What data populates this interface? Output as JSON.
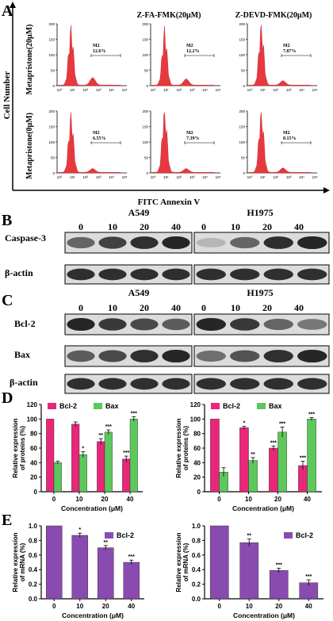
{
  "panel_letters": [
    "A",
    "B",
    "C",
    "D",
    "E"
  ],
  "panelA": {
    "y_title": "Cell Number",
    "x_title": "FITC Annexin V",
    "column_labels": [
      "",
      "Z-FA-FMK(20μM)",
      "Z-DEVD-FMK(20μM)"
    ],
    "row_labels": [
      "Metapristone(20μM)",
      "Metapristone(0μM)"
    ],
    "gate_label": "M2",
    "histograms": [
      {
        "row": 0,
        "col": 0,
        "gate_percent": "12.6%",
        "y_max": 200,
        "y_ticks": [
          "0",
          "50",
          "100",
          "150",
          "200"
        ]
      },
      {
        "row": 0,
        "col": 1,
        "gate_percent": "12.2%",
        "y_max": 200,
        "y_ticks": [
          "0",
          "50",
          "100",
          "150",
          "200"
        ]
      },
      {
        "row": 0,
        "col": 2,
        "gate_percent": "7.87%",
        "y_max": 200,
        "y_ticks": [
          "0",
          "50",
          "100",
          "150",
          "200"
        ]
      },
      {
        "row": 1,
        "col": 0,
        "gate_percent": "6.55%",
        "y_max": 200,
        "y_ticks": [
          "0",
          "50",
          "100",
          "150",
          "200"
        ]
      },
      {
        "row": 1,
        "col": 1,
        "gate_percent": "7.39%",
        "y_max": 200,
        "y_ticks": [
          "0",
          "50",
          "100",
          "150",
          "200"
        ]
      },
      {
        "row": 1,
        "col": 2,
        "gate_percent": "8.15%",
        "y_max": 200,
        "y_ticks": [
          "0",
          "50",
          "100",
          "150",
          "200"
        ]
      }
    ],
    "x_tick_labels": [
      "10⁰",
      "10¹",
      "10²",
      "10³",
      "10⁴",
      "10⁵"
    ],
    "histogram_color": "#e8383f"
  },
  "panelB": {
    "cell_lines": [
      "A549",
      "H1975"
    ],
    "doses": [
      "0",
      "10",
      "20",
      "40"
    ],
    "rows": [
      "Caspase-3",
      "β-actin"
    ]
  },
  "panelC": {
    "cell_lines": [
      "A549",
      "H1975"
    ],
    "doses": [
      "0",
      "10",
      "20",
      "40"
    ],
    "rows": [
      "Bcl-2",
      "Bax",
      "β-actin"
    ]
  },
  "chart_data": [
    {
      "type": "bar",
      "panel": "D-left",
      "categories": [
        "0",
        "10",
        "20",
        "40"
      ],
      "xlabel": "Concentration (μM)",
      "ylabel": "Relative expression of proteins (%)",
      "ylim": [
        0,
        120
      ],
      "yticks": [
        0,
        20,
        40,
        60,
        80,
        100,
        120
      ],
      "legend": "top",
      "series": [
        {
          "name": "Bcl-2",
          "color": "#e8277a",
          "values": [
            100,
            93,
            69,
            45
          ],
          "errors": [
            0,
            3,
            4,
            4
          ],
          "sig": [
            "",
            "",
            "**",
            "***"
          ]
        },
        {
          "name": "Bax",
          "color": "#5cc85c",
          "values": [
            40,
            51,
            82,
            100
          ],
          "errors": [
            2,
            4,
            3,
            3
          ],
          "sig": [
            "",
            "*",
            "***",
            "***"
          ]
        }
      ]
    },
    {
      "type": "bar",
      "panel": "D-right",
      "categories": [
        "0",
        "10",
        "20",
        "40"
      ],
      "xlabel": "Concentration (μM)",
      "ylabel": "Relative expression of proteins (%)",
      "ylim": [
        0,
        120
      ],
      "yticks": [
        0,
        20,
        40,
        60,
        80,
        100,
        120
      ],
      "legend": "top",
      "series": [
        {
          "name": "Bcl-2",
          "color": "#e8277a",
          "values": [
            100,
            88,
            60,
            36
          ],
          "errors": [
            0,
            2,
            3,
            6
          ],
          "sig": [
            "",
            "*",
            "***",
            "***"
          ]
        },
        {
          "name": "Bax",
          "color": "#5cc85c",
          "values": [
            27,
            43,
            82,
            100
          ],
          "errors": [
            6,
            4,
            7,
            2
          ],
          "sig": [
            "",
            "**",
            "***",
            "***"
          ]
        }
      ]
    },
    {
      "type": "bar",
      "panel": "E-left",
      "categories": [
        "0",
        "10",
        "20",
        "40"
      ],
      "xlabel": "Concentration (μM)",
      "ylabel": "Relative expression of mRNA (%)",
      "ylim": [
        0,
        1.0
      ],
      "yticks": [
        "0.0",
        "0.2",
        "0.4",
        "0.6",
        "0.8",
        "1.0"
      ],
      "legend": "top-right",
      "series": [
        {
          "name": "Bcl-2",
          "color": "#8a4bb0",
          "values": [
            1.0,
            0.87,
            0.7,
            0.5
          ],
          "errors": [
            0,
            0.03,
            0.03,
            0.03
          ],
          "sig": [
            "",
            "*",
            "**",
            "***"
          ]
        }
      ]
    },
    {
      "type": "bar",
      "panel": "E-right",
      "categories": [
        "0",
        "10",
        "20",
        "40"
      ],
      "xlabel": "Concentration (μM)",
      "ylabel": "Relative expression of mRNA (%)",
      "ylim": [
        0,
        1.0
      ],
      "yticks": [
        "0.0",
        "0.2",
        "0.4",
        "0.6",
        "0.8",
        "1.0"
      ],
      "legend": "top-right",
      "series": [
        {
          "name": "Bcl-2",
          "color": "#8a4bb0",
          "values": [
            1.0,
            0.77,
            0.39,
            0.22
          ],
          "errors": [
            0,
            0.05,
            0.03,
            0.04
          ],
          "sig": [
            "",
            "**",
            "***",
            "***"
          ]
        }
      ]
    }
  ]
}
